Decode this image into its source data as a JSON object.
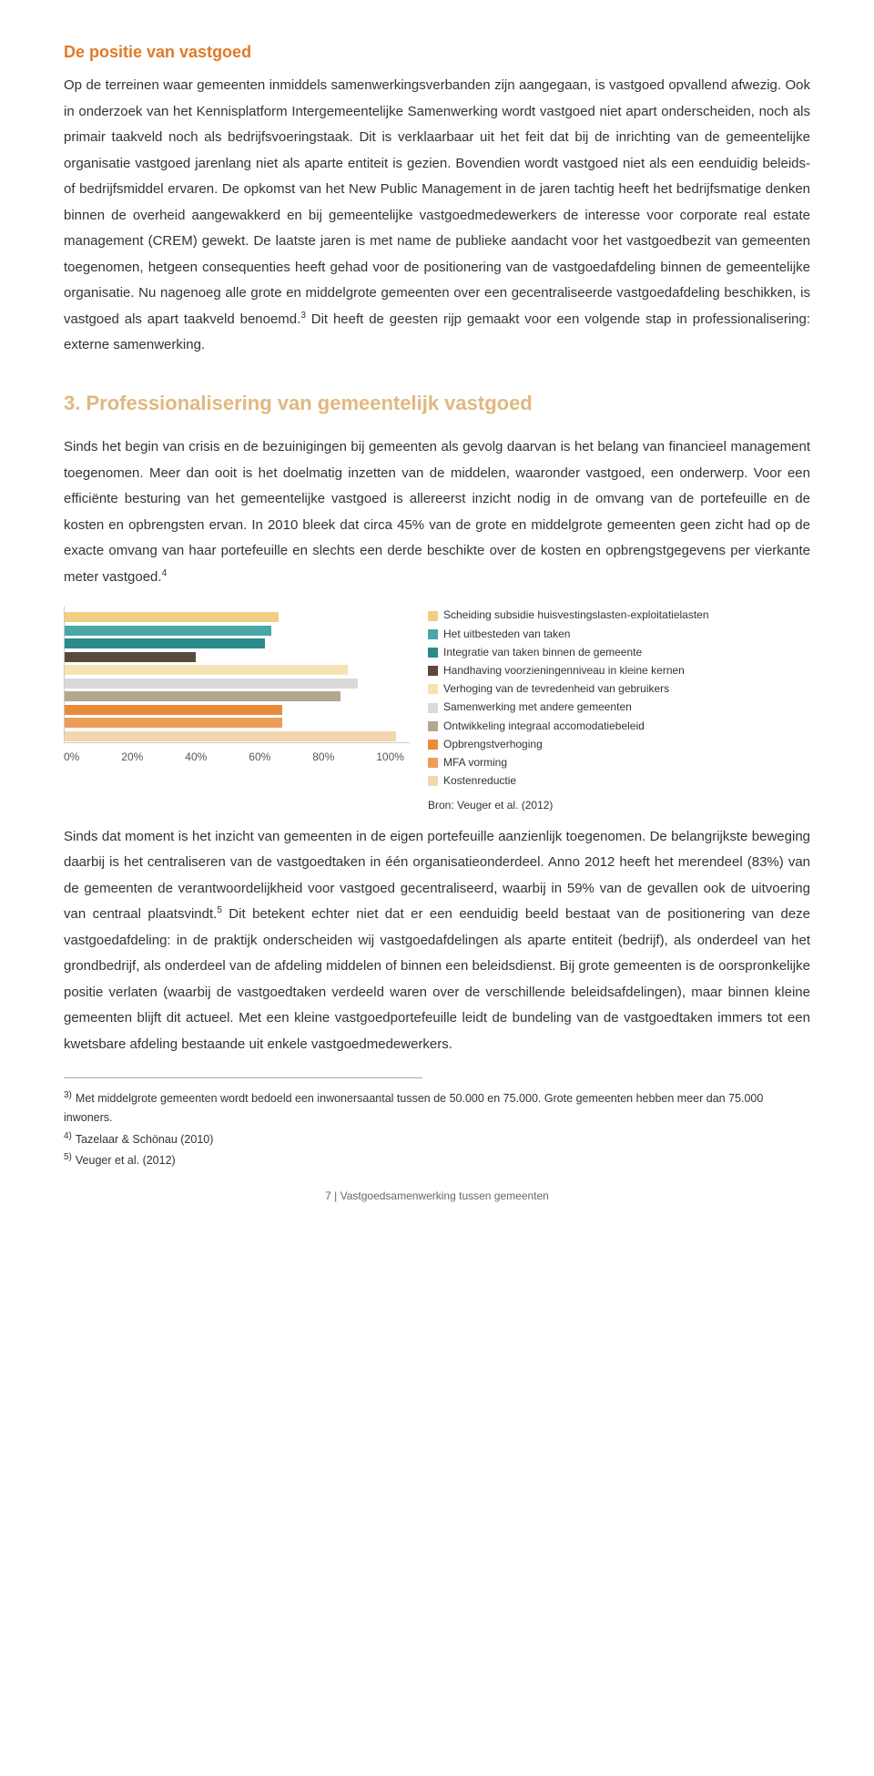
{
  "subheading": "De positie van vastgoed",
  "para1": "Op de terreinen waar gemeenten inmiddels samenwerkingsverbanden zijn aangegaan, is vastgoed opvallend afwezig. Ook in onderzoek van het Kennisplatform Intergemeentelijke Samenwerking wordt vastgoed niet apart onderscheiden, noch als primair taakveld noch als bedrijfsvoeringstaak. Dit is verklaarbaar uit het feit dat bij de inrichting van de gemeentelijke organisatie vastgoed jarenlang niet als aparte entiteit is gezien. Bovendien wordt vastgoed niet als een eenduidig beleids- of bedrijfsmiddel ervaren. De opkomst van het New Public Management in de jaren tachtig heeft het bedrijfsmatige denken binnen de overheid aangewakkerd en bij gemeentelijke vastgoedmedewerkers de interesse voor corporate real estate management (CREM) gewekt. De laatste jaren is met name de publieke aandacht voor het vastgoedbezit van gemeenten toegenomen, hetgeen consequenties heeft gehad voor de positionering van de vastgoedafdeling binnen de gemeentelijke organisatie. Nu nagenoeg alle grote en middelgrote gemeenten over een gecentraliseerde vastgoedafdeling beschikken, is vastgoed als apart taakveld benoemd.",
  "para1_sup": "3",
  "para1_tail": " Dit heeft de geesten rijp gemaakt voor een volgende stap in professionalisering: externe samenwerking.",
  "section_heading": "3. Professionalisering van gemeentelijk vastgoed",
  "para2": "Sinds het begin van crisis en de bezuinigingen bij gemeenten als gevolg daarvan is het belang van financieel management toegenomen. Meer dan ooit is het doelmatig inzetten van de middelen, waaronder vastgoed, een onderwerp. Voor een efficiënte besturing van het gemeentelijke vastgoed is allereerst inzicht nodig in de omvang van de portefeuille en de kosten en opbrengsten ervan. In 2010 bleek dat circa 45% van de grote en middelgrote gemeenten geen zicht had op de exacte omvang van haar portefeuille en slechts een derde beschikte over de kosten en opbrengstgegevens per vierkante meter vastgoed.",
  "para2_sup": "4",
  "chart": {
    "type": "bar",
    "xlim": [
      0,
      100
    ],
    "xticks": [
      "0%",
      "20%",
      "40%",
      "60%",
      "80%",
      "100%"
    ],
    "bars": [
      {
        "value": 62,
        "color": "#f0cf84"
      },
      {
        "value": 60,
        "color": "#4aa7a7"
      },
      {
        "value": 58,
        "color": "#2a8b8b"
      },
      {
        "value": 38,
        "color": "#5a4a3a"
      },
      {
        "value": 82,
        "color": "#f5e3b5"
      },
      {
        "value": 85,
        "color": "#d9d9d9"
      },
      {
        "value": 80,
        "color": "#b2a78f"
      },
      {
        "value": 63,
        "color": "#e88c3a"
      },
      {
        "value": 63,
        "color": "#ed9d55"
      },
      {
        "value": 96,
        "color": "#f3d6ad"
      }
    ],
    "legend": [
      {
        "label": "Scheiding subsidie huisvestingslasten-exploitatielasten",
        "color": "#f0cf84"
      },
      {
        "label": "Het uitbesteden van taken",
        "color": "#4aa7a7"
      },
      {
        "label": "Integratie van taken binnen de gemeente",
        "color": "#2a8b8b"
      },
      {
        "label": "Handhaving voorzieningenniveau in kleine kernen",
        "color": "#5a4a3a"
      },
      {
        "label": "Verhoging van de tevredenheid van gebruikers",
        "color": "#f5e3b5"
      },
      {
        "label": "Samenwerking met andere gemeenten",
        "color": "#d9d9d9"
      },
      {
        "label": "Ontwikkeling integraal accomodatiebeleid",
        "color": "#b2a78f"
      },
      {
        "label": "Opbrengstverhoging",
        "color": "#e88c3a"
      },
      {
        "label": "MFA vorming",
        "color": "#ed9d55"
      },
      {
        "label": "Kostenreductie",
        "color": "#f3d6ad"
      }
    ],
    "source": "Bron: Veuger et al. (2012)"
  },
  "para3": "Sinds dat moment is het inzicht van gemeenten in de eigen portefeuille aanzienlijk toegenomen. De belangrijkste beweging daarbij is het centraliseren van de vastgoedtaken in één organisatieonderdeel. Anno 2012 heeft het merendeel (83%) van de gemeenten de verantwoordelijkheid voor vastgoed gecentraliseerd, waarbij in 59% van de gevallen ook de uitvoering van centraal plaatsvindt.",
  "para3_sup": "5",
  "para3_tail": " Dit betekent echter niet dat er een eenduidig beeld bestaat van de positionering van deze vastgoedafdeling: in de praktijk onderscheiden wij vastgoedafdelingen als aparte entiteit (bedrijf), als onderdeel van het grondbedrijf, als onderdeel van de afdeling middelen of binnen een beleidsdienst. Bij grote gemeenten is de oorspronkelijke positie verlaten (waarbij de vastgoedtaken verdeeld waren over de verschillende beleidsafdelingen), maar binnen kleine gemeenten blijft dit actueel. Met een kleine vastgoedportefeuille leidt de bundeling van de vastgoedtaken immers tot een kwetsbare afdeling bestaande uit enkele vastgoedmedewerkers.",
  "footnotes": [
    {
      "num": "3)",
      "text": "Met middelgrote gemeenten wordt bedoeld een inwonersaantal tussen de 50.000 en 75.000. Grote gemeenten hebben meer dan 75.000 inwoners."
    },
    {
      "num": "4)",
      "text": "Tazelaar & Schönau (2010)"
    },
    {
      "num": "5)",
      "text": "Veuger et al. (2012)"
    }
  ],
  "pagefoot": "7 | Vastgoedsamenwerking tussen gemeenten"
}
